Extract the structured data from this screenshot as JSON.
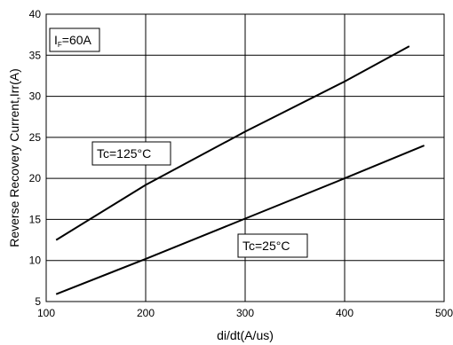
{
  "chart_data": {
    "type": "line",
    "title": "",
    "xlabel": "di/dt(A/us)",
    "ylabel": "Reverse Recovery Current,Irr(A)",
    "xlim": [
      100,
      500
    ],
    "ylim": [
      5,
      40
    ],
    "x_ticks": [
      "100",
      "200",
      "300",
      "400",
      "500"
    ],
    "y_ticks": [
      "5",
      "10",
      "15",
      "20",
      "25",
      "30",
      "35",
      "40"
    ],
    "grid": true,
    "condition_label": {
      "prefix": "I",
      "subscript": "F",
      "suffix": "=60A"
    },
    "series": [
      {
        "name": "Tc=125°C",
        "x": [
          110,
          200,
          300,
          400,
          465
        ],
        "y": [
          12.5,
          19.2,
          25.7,
          31.8,
          36.1
        ]
      },
      {
        "name": "Tc=25°C",
        "x": [
          110,
          200,
          300,
          400,
          480
        ],
        "y": [
          5.9,
          10.2,
          15.1,
          20.0,
          24.0
        ]
      }
    ]
  }
}
